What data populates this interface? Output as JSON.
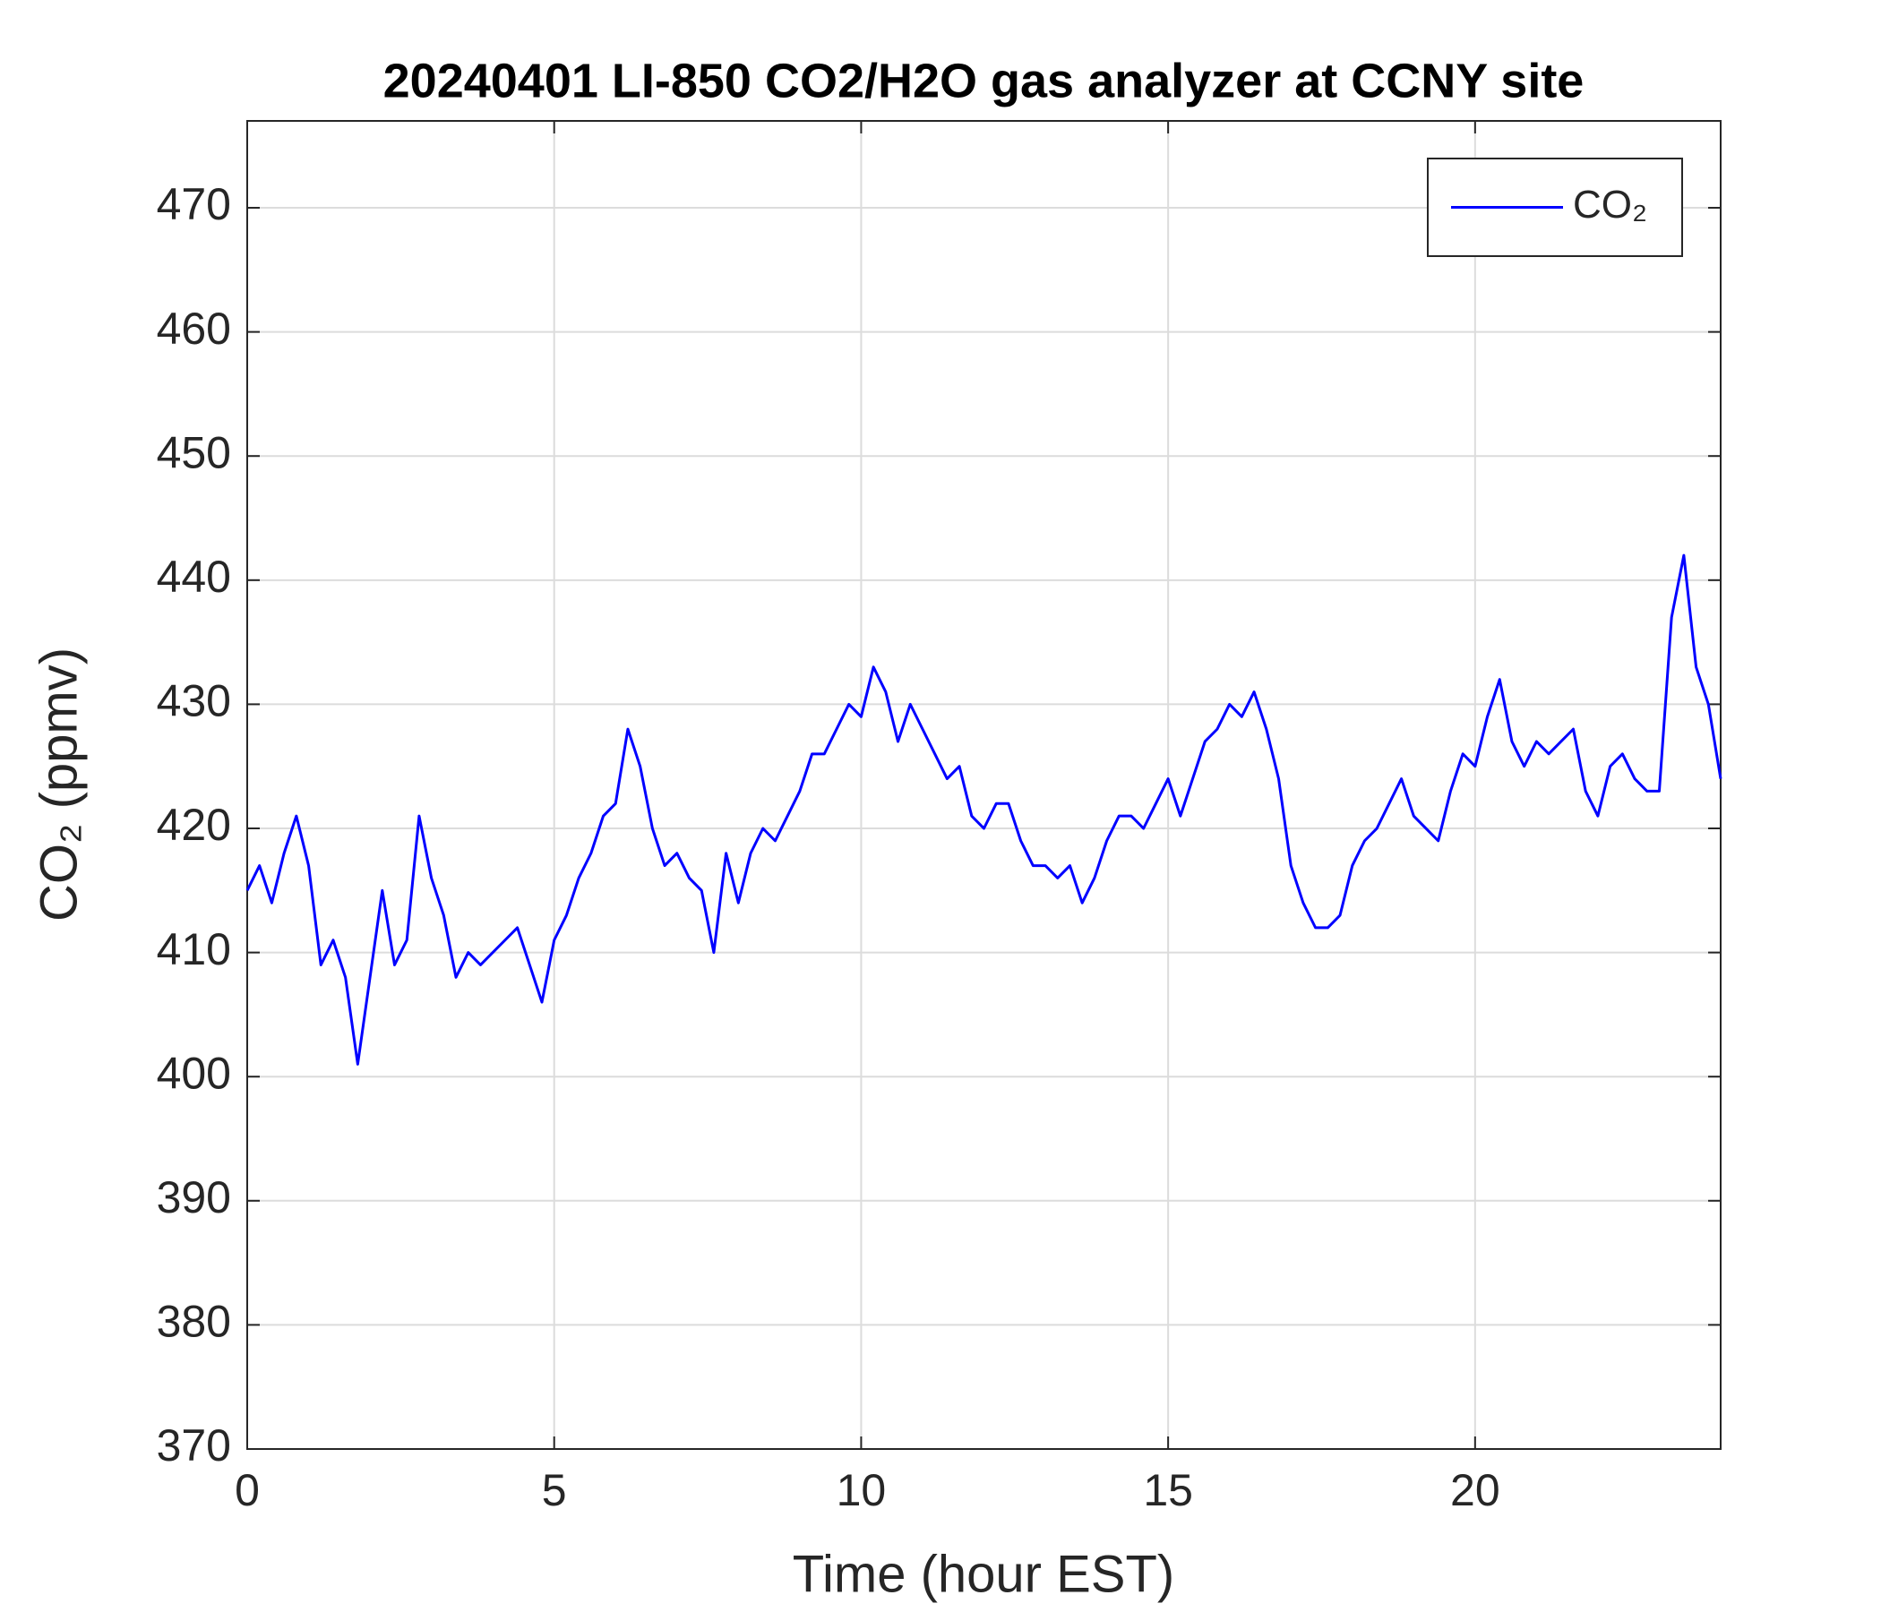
{
  "chart_data": {
    "type": "line",
    "title": "20240401 LI-850 CO2/H2O gas analyzer at CCNY site",
    "x_label": "Time (hour EST)",
    "y_label": "CO₂ (ppmv)",
    "x": [
      0,
      0.2,
      0.4,
      0.6,
      0.8,
      1,
      1.2,
      1.4,
      1.6,
      1.8,
      2,
      2.2,
      2.4,
      2.6,
      2.8,
      3,
      3.2,
      3.4,
      3.6,
      3.8,
      4,
      4.2,
      4.4,
      4.6,
      4.8,
      5,
      5.2,
      5.4,
      5.6,
      5.8,
      6,
      6.2,
      6.4,
      6.6,
      6.8,
      7,
      7.2,
      7.4,
      7.6,
      7.8,
      8,
      8.2,
      8.4,
      8.6,
      8.8,
      9,
      9.2,
      9.4,
      9.6,
      9.8,
      10,
      10.2,
      10.4,
      10.6,
      10.8,
      11,
      11.2,
      11.4,
      11.6,
      11.8,
      12,
      12.2,
      12.4,
      12.6,
      12.8,
      13,
      13.2,
      13.4,
      13.6,
      13.8,
      14,
      14.2,
      14.4,
      14.6,
      14.8,
      15,
      15.2,
      15.4,
      15.6,
      15.8,
      16,
      16.2,
      16.4,
      16.6,
      16.8,
      17,
      17.2,
      17.4,
      17.6,
      17.8,
      18,
      18.2,
      18.4,
      18.6,
      18.8,
      19,
      19.2,
      19.4,
      19.6,
      19.8,
      20,
      20.2,
      20.4,
      20.6,
      20.8,
      21,
      21.2,
      21.4,
      21.6,
      21.8,
      22,
      22.2,
      22.4,
      22.6,
      22.8,
      23,
      23.2,
      23.4,
      23.6,
      23.8,
      24
    ],
    "series": [
      {
        "name": "CO₂",
        "color": "#0000ff",
        "values": [
          415,
          417,
          414,
          418,
          421,
          417,
          409,
          411,
          408,
          401,
          408,
          415,
          409,
          411,
          421,
          416,
          413,
          408,
          410,
          409,
          410,
          411,
          412,
          409,
          406,
          411,
          413,
          416,
          418,
          421,
          422,
          428,
          425,
          420,
          417,
          418,
          416,
          415,
          410,
          418,
          414,
          418,
          420,
          419,
          421,
          423,
          426,
          426,
          428,
          430,
          429,
          433,
          431,
          427,
          430,
          428,
          426,
          424,
          425,
          421,
          420,
          422,
          422,
          419,
          417,
          417,
          416,
          417,
          414,
          416,
          419,
          421,
          421,
          420,
          422,
          424,
          421,
          424,
          427,
          428,
          430,
          429,
          431,
          428,
          424,
          417,
          414,
          412,
          412,
          413,
          417,
          419,
          420,
          422,
          424,
          421,
          420,
          419,
          423,
          426,
          425,
          429,
          432,
          427,
          425,
          427,
          426,
          427,
          428,
          423,
          421,
          425,
          426,
          424,
          423,
          423,
          437,
          442,
          433,
          430,
          424
        ]
      }
    ],
    "xlim": [
      0,
      24
    ],
    "xticks": [
      0,
      5,
      10,
      15,
      20
    ],
    "ylim": [
      370,
      477
    ],
    "yticks": [
      370,
      380,
      390,
      400,
      410,
      420,
      430,
      440,
      450,
      460,
      470
    ],
    "grid": true,
    "legend": "northeast"
  }
}
